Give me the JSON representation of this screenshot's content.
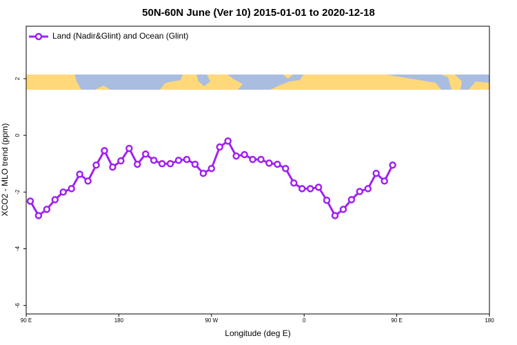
{
  "chart_data": {
    "type": "line",
    "title": "50N-60N June (Ver 10)   2015-01-01 to 2020-12-18",
    "x_label": "Longitude (deg E)",
    "y_label": "XCO2 - MLO trend (ppm)",
    "legend": "top-left",
    "xlim": [
      90,
      540
    ],
    "ylim": [
      -6.3,
      3.85
    ],
    "xticks": [
      {
        "value": 90,
        "label": "90 E"
      },
      180,
      {
        "value": 270,
        "label": "90 W"
      },
      {
        "value": 360,
        "label": "0"
      },
      {
        "value": 450,
        "label": "90 E"
      },
      {
        "value": 540,
        "label": "180"
      }
    ],
    "yticks": [
      -6,
      -4,
      -2,
      0,
      2
    ],
    "series": [
      {
        "name": "Land (Nadir&Glint) and Ocean (Glint)",
        "color": "#a020f0",
        "x": [
          94,
          102,
          110,
          118,
          126,
          134,
          142,
          150,
          158,
          166,
          174,
          182,
          190,
          198,
          206,
          214,
          222,
          230,
          238,
          246,
          254,
          262,
          270,
          278,
          286,
          294,
          302,
          310,
          318,
          326,
          334,
          342,
          350,
          358,
          366,
          374,
          382,
          390,
          398,
          406,
          414,
          422,
          430,
          438,
          446
        ],
        "values": [
          -2.32,
          -2.83,
          -2.61,
          -2.27,
          -2.0,
          -1.88,
          -1.37,
          -1.61,
          -1.05,
          -0.54,
          -1.12,
          -0.9,
          -0.46,
          -1.02,
          -0.66,
          -0.88,
          -1.0,
          -1.0,
          -0.88,
          -0.85,
          -1.02,
          -1.34,
          -1.17,
          -0.41,
          -0.2,
          -0.73,
          -0.68,
          -0.85,
          -0.85,
          -0.98,
          -1.02,
          -1.17,
          -1.68,
          -1.88,
          -1.88,
          -1.83,
          -2.29,
          -2.83,
          -2.61,
          -2.27,
          -1.98,
          -1.88,
          -1.34,
          -1.61,
          -1.05
        ]
      }
    ]
  }
}
